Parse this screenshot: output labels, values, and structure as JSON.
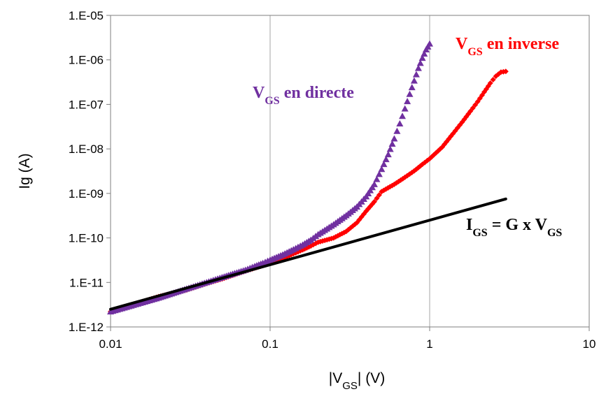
{
  "chart_data": {
    "type": "scatter",
    "scale": {
      "x": "log",
      "y": "log"
    },
    "xlim": [
      0.01,
      10
    ],
    "ylim": [
      1e-12,
      1e-05
    ],
    "grid": {
      "x": true,
      "y": false
    },
    "xlabel": {
      "pre": "|V",
      "sub": "GS",
      "post": "| (V)"
    },
    "ylabel": "Ig (A)",
    "x_ticks": [
      {
        "value": 0.01,
        "label": "0.01"
      },
      {
        "value": 0.1,
        "label": "0.1"
      },
      {
        "value": 1,
        "label": "1"
      },
      {
        "value": 10,
        "label": "10"
      }
    ],
    "y_ticks": [
      {
        "value": 1e-12,
        "label": "1.E-12"
      },
      {
        "value": 1e-11,
        "label": "1.E-11"
      },
      {
        "value": 1e-10,
        "label": "1.E-10"
      },
      {
        "value": 1e-09,
        "label": "1.E-09"
      },
      {
        "value": 1e-08,
        "label": "1.E-08"
      },
      {
        "value": 1e-07,
        "label": "1.E-07"
      },
      {
        "value": 1e-06,
        "label": "1.E-06"
      },
      {
        "value": 1e-05,
        "label": "1.E-05"
      }
    ],
    "series": [
      {
        "key": "inverse",
        "color": "#ff0000",
        "marker": "diamond",
        "x": [
          0.01,
          0.02,
          0.03,
          0.04,
          0.05,
          0.06,
          0.07,
          0.08,
          0.09,
          0.1,
          0.12,
          0.14,
          0.16,
          0.18,
          0.2,
          0.25,
          0.3,
          0.35,
          0.4,
          0.45,
          0.5,
          0.6,
          0.7,
          0.8,
          0.9,
          1.0,
          1.2,
          1.4,
          1.6,
          1.8,
          2.0,
          2.2,
          2.4,
          2.6,
          2.8,
          3.0
        ],
        "y": [
          2.2e-12,
          4.8e-12,
          6.8e-12,
          9.5e-12,
          1.2e-11,
          1.5e-11,
          1.8e-11,
          2.1e-11,
          2.4e-11,
          2.8e-11,
          3.5e-11,
          4.4e-11,
          5.4e-11,
          6.6e-11,
          8e-11,
          1e-10,
          1.4e-10,
          2.2e-10,
          4e-10,
          6.5e-10,
          1.1e-09,
          1.6e-09,
          2.3e-09,
          3.2e-09,
          4.5e-09,
          6e-09,
          1.1e-08,
          2.2e-08,
          4e-08,
          7e-08,
          1.15e-07,
          1.9e-07,
          3e-07,
          4.3e-07,
          5.3e-07,
          5.5e-07
        ]
      },
      {
        "key": "directe",
        "color": "#7030a0",
        "marker": "triangle",
        "x": [
          0.01,
          0.02,
          0.03,
          0.04,
          0.05,
          0.06,
          0.07,
          0.08,
          0.09,
          0.1,
          0.12,
          0.14,
          0.16,
          0.18,
          0.2,
          0.25,
          0.3,
          0.35,
          0.4,
          0.45,
          0.5,
          0.55,
          0.6,
          0.65,
          0.7,
          0.75,
          0.8,
          0.85,
          0.9,
          0.95,
          1.0
        ],
        "y": [
          2.2e-12,
          4.5e-12,
          7.2e-12,
          1e-11,
          1.3e-11,
          1.6e-11,
          1.9e-11,
          2.3e-11,
          2.7e-11,
          3.2e-11,
          4.2e-11,
          5.5e-11,
          7e-11,
          9e-11,
          1.2e-10,
          2e-10,
          3.2e-10,
          5e-10,
          8.5e-10,
          1.6e-09,
          3.5e-09,
          7.5e-09,
          1.7e-08,
          3.7e-08,
          8e-08,
          1.7e-07,
          3.4e-07,
          6.5e-07,
          1.1e-06,
          1.7e-06,
          2.3e-06
        ]
      },
      {
        "key": "ohmic",
        "color": "#000000",
        "marker": "line",
        "x": [
          0.01,
          3.0
        ],
        "y": [
          2.5e-12,
          7.5e-10
        ]
      }
    ],
    "annotations": [
      {
        "key": "inverse",
        "pre": "V",
        "sub": "GS",
        "post": " en inverse",
        "color": "#ff0000"
      },
      {
        "key": "directe",
        "pre": "V",
        "sub": "GS",
        "post": " en directe",
        "color": "#7030a0"
      },
      {
        "key": "ohmic",
        "pre": "I",
        "sub": "GS",
        "post": " = G x V",
        "sub2": "GS",
        "color": "#000000"
      }
    ]
  }
}
